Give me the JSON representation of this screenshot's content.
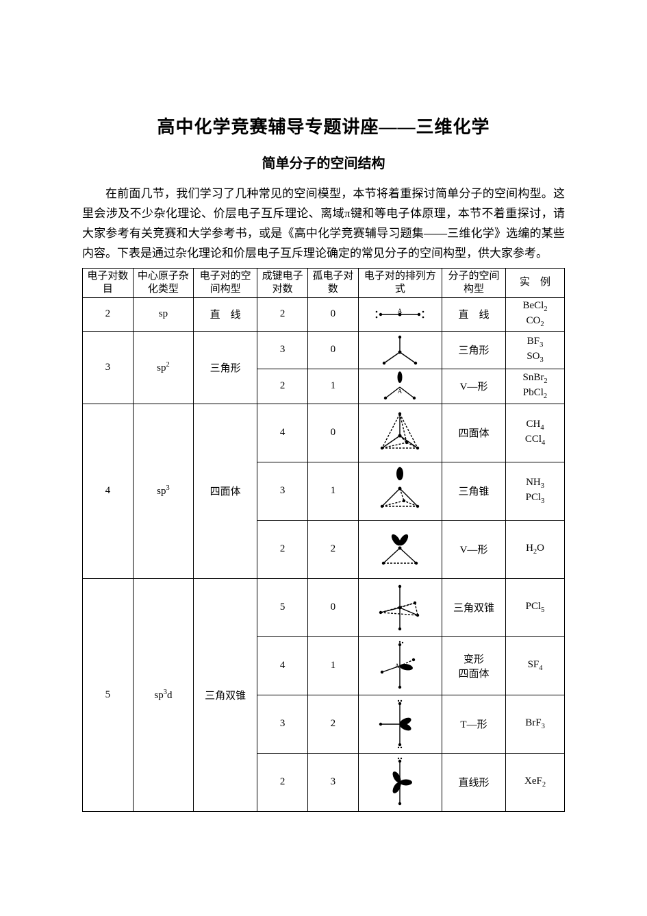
{
  "title": "高中化学竞赛辅导专题讲座——三维化学",
  "subtitle": "简单分子的空间结构",
  "paragraph": "在前面几节，我们学习了几种常见的空间模型，本节将着重探讨简单分子的空间构型。这里会涉及不少杂化理论、价层电子互斥理论、离域π键和等电子体原理，本节不着重探讨，请大家参考有关竞赛和大学参考书，或是《高中化学竞赛辅导习题集——三维化学》选编的某些内容。下表是通过杂化理论和价层电子互斥理论确定的常见分子的空间构型，供大家参考。",
  "table": {
    "headers": [
      "电子对数　目",
      "中心原子杂化类型",
      "电子对的空间构型",
      "成键电子对数",
      "孤电子对　数",
      "电子对的排列方式",
      "分子的空间构型",
      "实　例"
    ],
    "col_widths": [
      "54",
      "66",
      "70",
      "54",
      "54",
      "94",
      "70",
      "64"
    ],
    "rows": [
      {
        "pairs": "2",
        "hyb": "sp",
        "epgeom": "直　线",
        "bonds": "2",
        "lone": "0",
        "molgeom": "直　线",
        "ex": "BeCl<sub>2</sub><br>CO<sub>2</sub>",
        "h": "short",
        "diag": "linear"
      },
      {
        "pairs": "3",
        "hyb": "sp<sup>2</sup>",
        "epgeom": "三角形",
        "sub": [
          {
            "bonds": "3",
            "lone": "0",
            "molgeom": "三角形",
            "ex": "BF<sub>3</sub><br>SO<sub>3</sub>",
            "h": "short",
            "diag": "trig"
          },
          {
            "bonds": "2",
            "lone": "1",
            "molgeom": "V—形",
            "ex": "SnBr<sub>2</sub><br>PbCl<sub>2</sub>",
            "h": "short",
            "diag": "bent"
          }
        ]
      },
      {
        "pairs": "4",
        "hyb": "sp<sup>3</sup>",
        "epgeom": "四面体",
        "sub": [
          {
            "bonds": "4",
            "lone": "0",
            "molgeom": "四面体",
            "ex": "CH<sub>4</sub><br>CCl<sub>4</sub>",
            "h": "tall",
            "diag": "tetra"
          },
          {
            "bonds": "3",
            "lone": "1",
            "molgeom": "三角锥",
            "ex": "NH<sub>3</sub><br>PCl<sub>3</sub>",
            "h": "tall",
            "diag": "pyramid"
          },
          {
            "bonds": "2",
            "lone": "2",
            "molgeom": "V—形",
            "ex": "H<sub>2</sub>O",
            "h": "tall",
            "diag": "bent2"
          }
        ]
      },
      {
        "pairs": "5",
        "hyb": "sp<sup>3</sup>d",
        "epgeom": "三角双锥",
        "sub": [
          {
            "bonds": "5",
            "lone": "0",
            "molgeom": "三角双锥",
            "ex": "PCl<sub>5</sub>",
            "h": "tall",
            "diag": "tbp"
          },
          {
            "bonds": "4",
            "lone": "1",
            "molgeom": "变形<br>四面体",
            "ex": "SF<sub>4</sub>",
            "h": "tall",
            "diag": "seesaw"
          },
          {
            "bonds": "3",
            "lone": "2",
            "molgeom": "T—形",
            "ex": "BrF<sub>3</sub>",
            "h": "tall",
            "diag": "tshape"
          },
          {
            "bonds": "2",
            "lone": "3",
            "molgeom": "直线形",
            "ex": "XeF<sub>2</sub>",
            "h": "tall",
            "diag": "linear3"
          }
        ]
      }
    ]
  },
  "style": {
    "page_bg": "#ffffff",
    "text_color": "#000000",
    "border_color": "#000000",
    "title_fontsize": 26,
    "subtitle_fontsize": 20,
    "body_fontsize": 17,
    "table_fontsize": 15
  }
}
